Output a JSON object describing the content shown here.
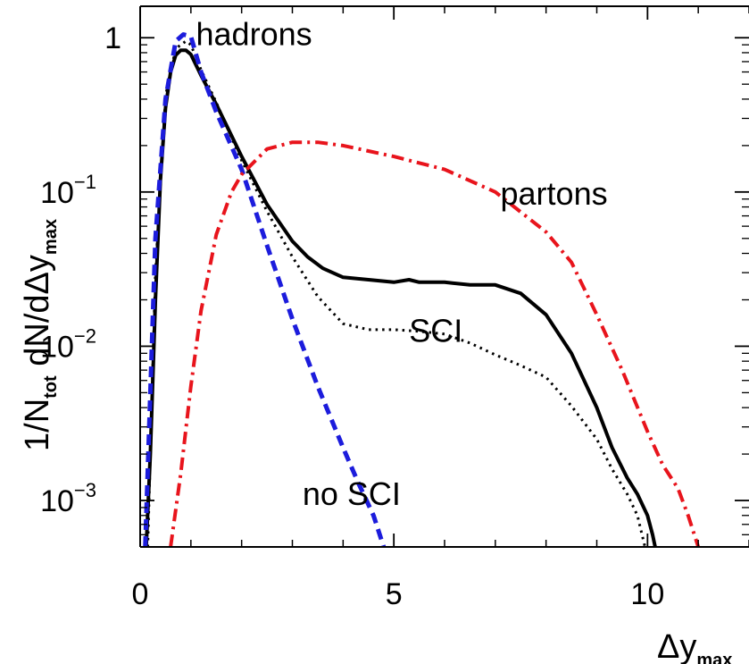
{
  "chart_data": {
    "type": "line",
    "xlabel": {
      "main": "Δy",
      "sub": "max"
    },
    "ylabel": {
      "part1": "1/N",
      "sub1": "tot",
      "part2": " dN/dΔy",
      "sub2": "max"
    },
    "xlim": [
      0,
      12
    ],
    "ylim": [
      0.0005,
      1.6
    ],
    "yscale": "log",
    "x_ticks": [
      0,
      5,
      10
    ],
    "x_tick_labels": [
      "0",
      "5",
      "10"
    ],
    "y_ticks": [
      {
        "value": 1,
        "base": "1",
        "exp": ""
      },
      {
        "value": 0.1,
        "base": "10",
        "exp": "−1"
      },
      {
        "value": 0.01,
        "base": "10",
        "exp": "−2"
      },
      {
        "value": 0.001,
        "base": "10",
        "exp": "−3"
      }
    ],
    "series": [
      {
        "label": "hadrons (SCI)",
        "color": "#000000",
        "style": "solid",
        "x": [
          0.12,
          0.2,
          0.3,
          0.4,
          0.5,
          0.6,
          0.7,
          0.8,
          0.9,
          1.0,
          1.2,
          1.5,
          2.0,
          2.5,
          3.0,
          3.3,
          3.6,
          4.0,
          4.5,
          5.0,
          5.3,
          5.5,
          6.0,
          6.5,
          7.0,
          7.5,
          8.0,
          8.5,
          9.0,
          9.3,
          9.6,
          9.8,
          10.0,
          10.1,
          10.15
        ],
        "y": [
          0.0005,
          0.002,
          0.02,
          0.12,
          0.35,
          0.6,
          0.77,
          0.83,
          0.83,
          0.78,
          0.57,
          0.37,
          0.17,
          0.083,
          0.048,
          0.038,
          0.032,
          0.028,
          0.027,
          0.026,
          0.027,
          0.026,
          0.026,
          0.025,
          0.025,
          0.022,
          0.016,
          0.009,
          0.004,
          0.0022,
          0.0014,
          0.0011,
          0.0008,
          0.0006,
          0.0005
        ]
      },
      {
        "label": "hadrons (no SCI, dotted)",
        "color": "#000000",
        "style": "dotted",
        "x": [
          0.15,
          0.3,
          0.5,
          0.7,
          0.9,
          1.0,
          1.2,
          1.5,
          2.0,
          2.5,
          3.0,
          3.5,
          4.0,
          4.5,
          5.0,
          5.5,
          6.0,
          6.5,
          7.0,
          7.5,
          8.0,
          8.5,
          9.0,
          9.3,
          9.6,
          9.8,
          9.95
        ],
        "y": [
          0.0005,
          0.03,
          0.42,
          0.85,
          0.95,
          0.9,
          0.62,
          0.38,
          0.16,
          0.075,
          0.038,
          0.021,
          0.014,
          0.0128,
          0.0128,
          0.0125,
          0.012,
          0.0105,
          0.0088,
          0.0075,
          0.0063,
          0.0041,
          0.0025,
          0.0016,
          0.0011,
          0.0008,
          0.0005
        ]
      },
      {
        "label": "no SCI",
        "color": "#1c1cdc",
        "style": "dashed",
        "x": [
          0.1,
          0.2,
          0.3,
          0.5,
          0.7,
          0.85,
          1.0,
          1.2,
          1.5,
          2.0,
          2.5,
          3.0,
          3.5,
          4.0,
          4.3,
          4.6,
          4.8
        ],
        "y": [
          0.0005,
          0.005,
          0.05,
          0.4,
          0.95,
          1.05,
          1.02,
          0.6,
          0.33,
          0.14,
          0.045,
          0.015,
          0.0055,
          0.0022,
          0.0013,
          0.0008,
          0.0005
        ]
      },
      {
        "label": "partons",
        "color": "#e8141c",
        "style": "dashdot",
        "x": [
          0.6,
          0.8,
          1.0,
          1.2,
          1.5,
          1.8,
          2.0,
          2.5,
          3.0,
          3.5,
          4.0,
          5.0,
          6.0,
          7.0,
          8.0,
          8.5,
          9.0,
          9.5,
          10.0,
          10.3,
          10.6,
          10.8,
          11.0
        ],
        "y": [
          0.0005,
          0.0015,
          0.0055,
          0.017,
          0.053,
          0.1,
          0.13,
          0.19,
          0.21,
          0.21,
          0.2,
          0.17,
          0.14,
          0.1,
          0.055,
          0.035,
          0.016,
          0.007,
          0.0028,
          0.0017,
          0.0012,
          0.0008,
          0.0005
        ]
      }
    ],
    "annotations": [
      {
        "text": "hadrons",
        "x": 1.1,
        "y": 1.05
      },
      {
        "text": "partons",
        "x": 7.1,
        "y": 0.097
      },
      {
        "text": "SCI",
        "x": 5.3,
        "y": 0.0125
      },
      {
        "text": "no SCI",
        "x": 3.2,
        "y": 0.0011
      }
    ]
  }
}
